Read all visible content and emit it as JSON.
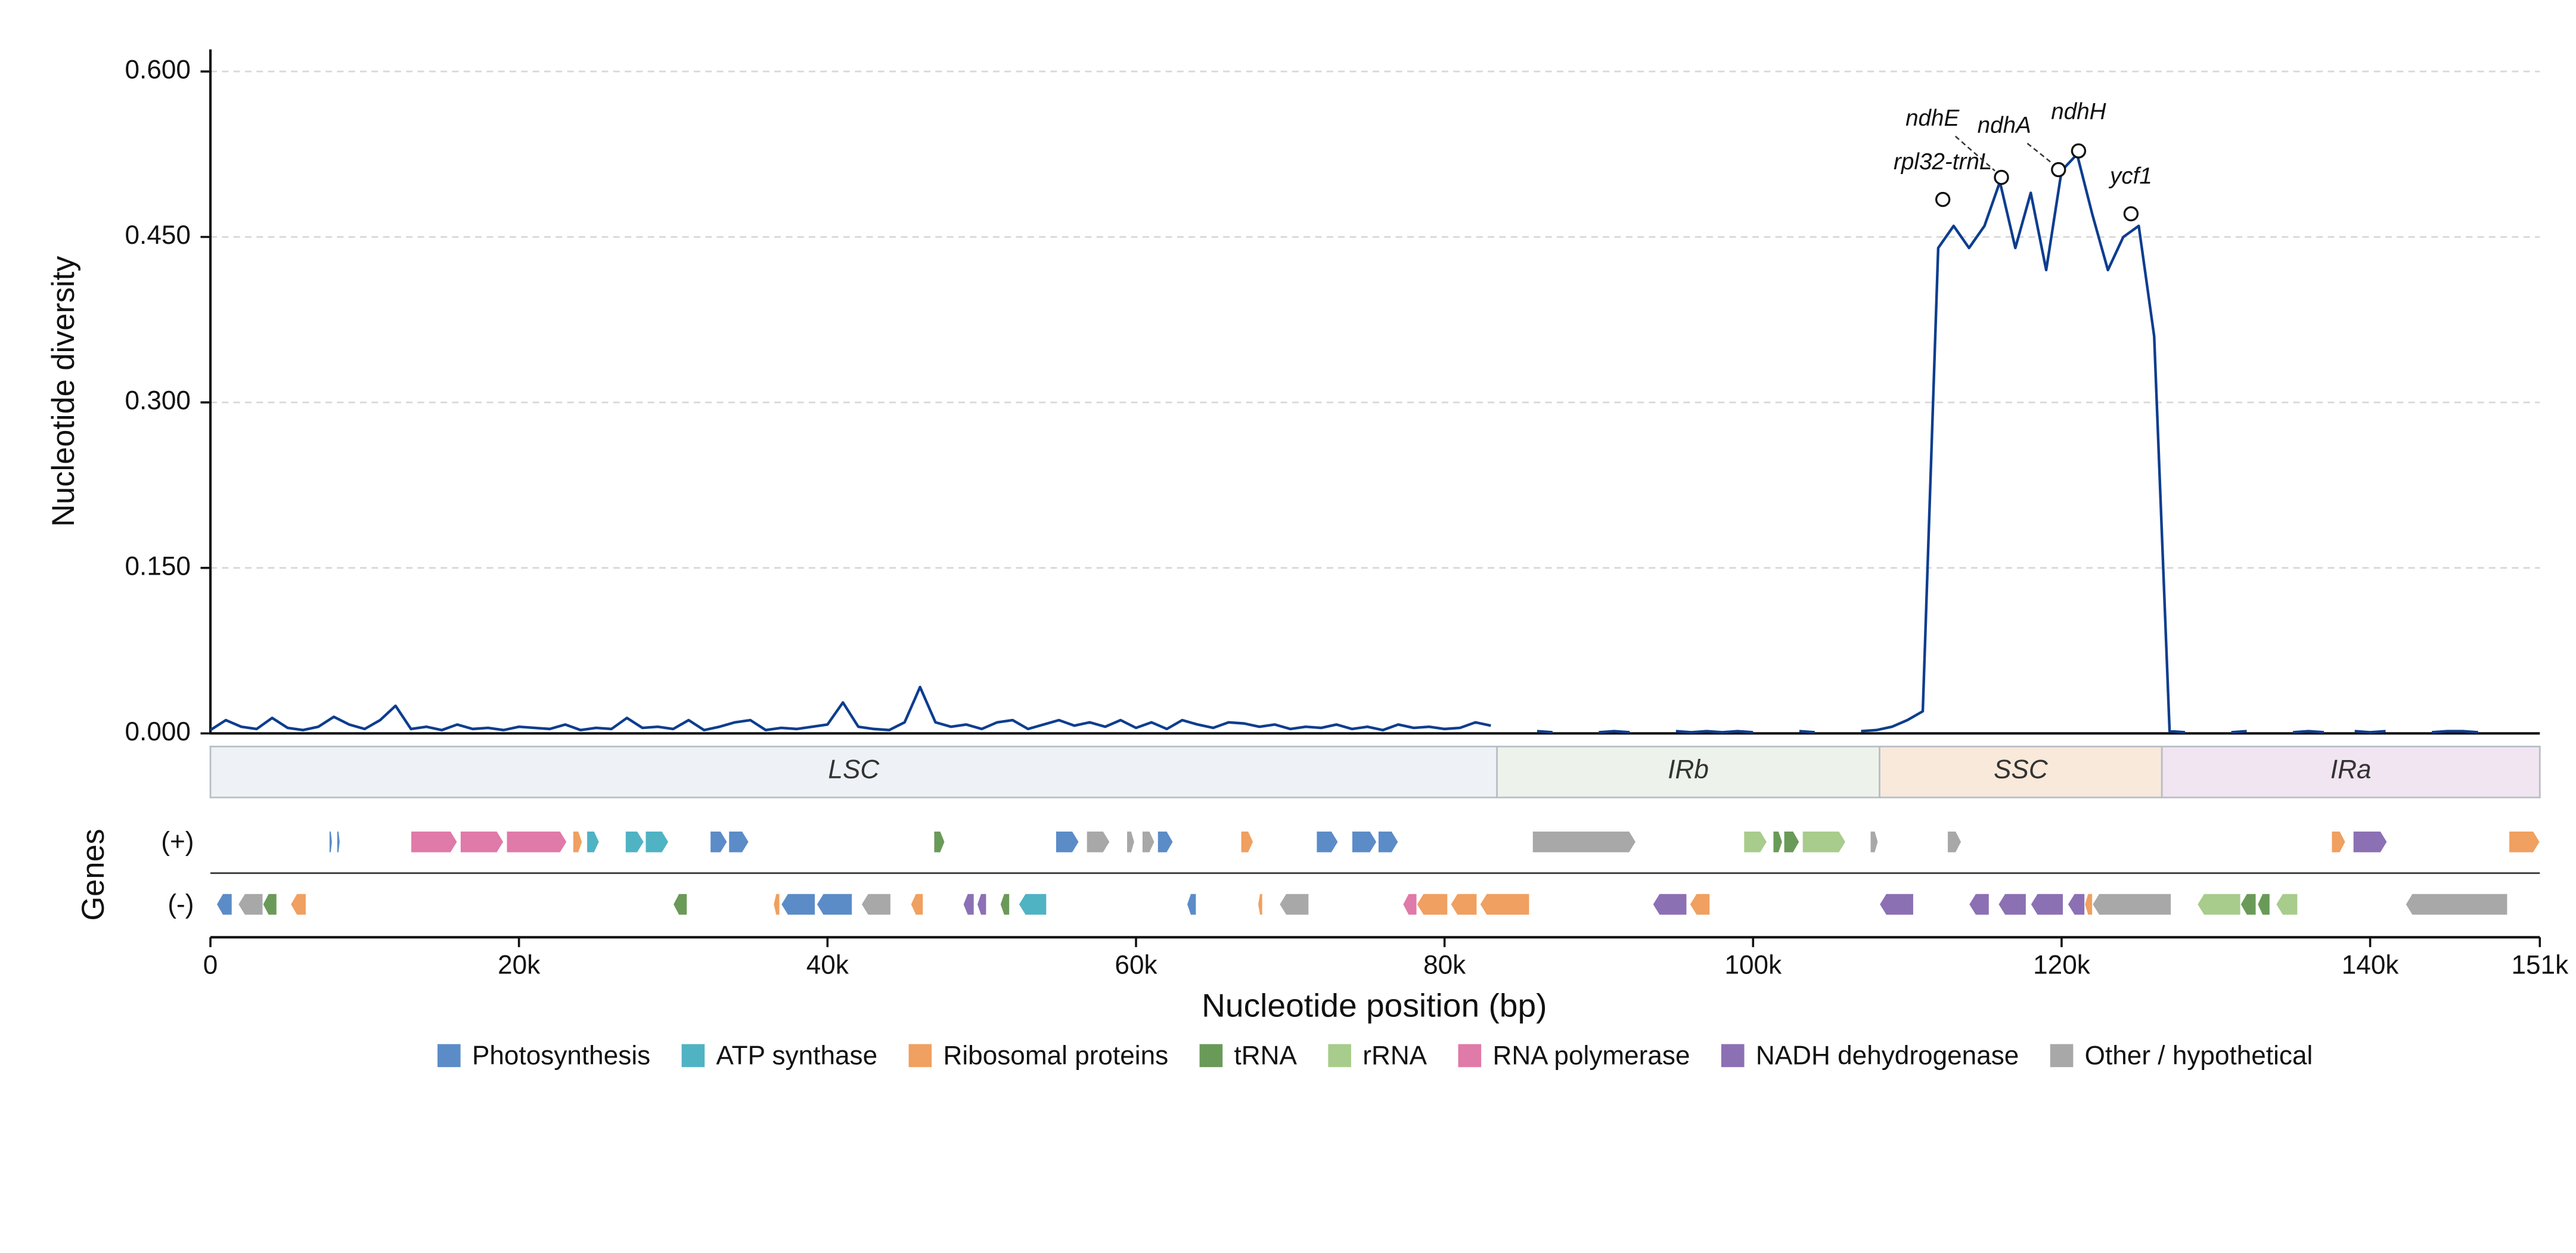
{
  "chart_data": {
    "type": "line",
    "ylabel": "Nucleotide diversity",
    "xlabel": "Nucleotide position (bp)",
    "genes_label": "Genes",
    "strand_labels": [
      "(+)",
      "(-)"
    ],
    "xlim": [
      0,
      151000
    ],
    "ylim": [
      0,
      0.62
    ],
    "xticks": [
      0,
      {
        "value": 20000,
        "label": "20k"
      },
      {
        "value": 40000,
        "label": "40k"
      },
      {
        "value": 60000,
        "label": "60k"
      },
      {
        "value": 80000,
        "label": "80k"
      },
      {
        "value": 100000,
        "label": "100k"
      },
      {
        "value": 120000,
        "label": "120k"
      },
      {
        "value": 140000,
        "label": "140k"
      },
      {
        "value": 151000,
        "label": "151k"
      }
    ],
    "yticks": [
      {
        "value": 0,
        "label": "0.000"
      },
      {
        "value": 0.15,
        "label": "0.150"
      },
      {
        "value": 0.3,
        "label": "0.300"
      },
      {
        "value": 0.45,
        "label": "0.450"
      },
      {
        "value": 0.6,
        "label": "0.600"
      }
    ],
    "grid": true,
    "series": [
      {
        "name": "Nucleotide diversity",
        "color": "#0d3d8f",
        "x": [
          0,
          1000,
          2000,
          3000,
          4000,
          5000,
          6000,
          7000,
          8000,
          9000,
          10000,
          11000,
          12000,
          13000,
          14000,
          15000,
          16000,
          17000,
          18000,
          19000,
          20000,
          21000,
          22000,
          23000,
          24000,
          25000,
          26000,
          27000,
          28000,
          29000,
          30000,
          31000,
          32000,
          33000,
          34000,
          35000,
          36000,
          37000,
          38000,
          39000,
          40000,
          41000,
          42000,
          43000,
          44000,
          45000,
          46000,
          47000,
          48000,
          49000,
          50000,
          51000,
          52000,
          53000,
          54000,
          55000,
          56000,
          57000,
          58000,
          59000,
          60000,
          61000,
          62000,
          63000,
          64000,
          65000,
          66000,
          67000,
          68000,
          69000,
          70000,
          71000,
          72000,
          73000,
          74000,
          75000,
          76000,
          77000,
          78000,
          79000,
          80000,
          81000,
          82000,
          83000,
          84000,
          85000,
          86000,
          87000,
          88000,
          89000,
          90000,
          91000,
          92000,
          93000,
          94000,
          95000,
          96000,
          97000,
          98000,
          99000,
          100000,
          101000,
          102000,
          103000,
          104000,
          105000,
          106000,
          107000,
          108000,
          109000,
          110000,
          111000,
          112000,
          113000,
          114000,
          115000,
          116000,
          117000,
          118000,
          119000,
          120000,
          121000,
          122000,
          123000,
          124000,
          125000,
          126000,
          127000,
          128000,
          129000,
          130000,
          131000,
          132000,
          133000,
          134000,
          135000,
          136000,
          137000,
          138000,
          139000,
          140000,
          141000,
          142000,
          143000,
          144000,
          145000,
          146000,
          147000,
          148000,
          149000,
          150000
        ],
        "values": [
          0.003,
          0.012,
          0.006,
          0.004,
          0.014,
          0.005,
          0.003,
          0.006,
          0.015,
          0.008,
          0.004,
          0.012,
          0.025,
          0.004,
          0.006,
          0.003,
          0.008,
          0.004,
          0.005,
          0.003,
          0.006,
          0.005,
          0.004,
          0.008,
          0.003,
          0.005,
          0.004,
          0.014,
          0.005,
          0.006,
          0.004,
          0.012,
          0.003,
          0.006,
          0.01,
          0.012,
          0.003,
          0.005,
          0.004,
          0.006,
          0.008,
          0.028,
          0.006,
          0.004,
          0.003,
          0.01,
          0.042,
          0.01,
          0.006,
          0.008,
          0.004,
          0.01,
          0.012,
          0.004,
          0.008,
          0.012,
          0.007,
          0.01,
          0.006,
          0.012,
          0.005,
          0.01,
          0.004,
          0.012,
          0.008,
          0.005,
          0.01,
          0.009,
          0.006,
          0.008,
          0.004,
          0.006,
          0.005,
          0.008,
          0.004,
          0.006,
          0.003,
          0.008,
          0.005,
          0.006,
          0.004,
          0.005,
          0.01,
          0.007,
          null,
          null,
          0.002,
          0.001,
          null,
          null,
          0.001,
          0.002,
          0.001,
          null,
          null,
          0.002,
          0.001,
          0.002,
          0.001,
          0.002,
          0.001,
          null,
          null,
          0.002,
          0.001,
          null,
          null,
          0.002,
          0.003,
          0.006,
          0.012,
          0.02,
          0.44,
          0.46,
          0.44,
          0.46,
          0.5,
          0.44,
          0.49,
          0.42,
          0.51,
          0.525,
          0.47,
          0.42,
          0.45,
          0.46,
          0.36,
          0.002,
          0.001,
          null,
          null,
          0.001,
          0.002,
          null,
          null,
          0.001,
          0.002,
          0.001,
          null,
          0.002,
          0.001,
          0.002,
          null,
          null,
          0.001,
          0.002,
          0.002,
          0.001,
          null,
          null,
          null
        ]
      }
    ],
    "annotations": [
      {
        "label": "rpl32-trnL",
        "x": 112300,
        "y": 0.484
      },
      {
        "label": "ndhE",
        "x": 116100,
        "y": 0.504
      },
      {
        "label": "ndhA",
        "x": 119800,
        "y": 0.511
      },
      {
        "label": "ndhH",
        "x": 121100,
        "y": 0.528
      },
      {
        "label": "ycf1",
        "x": 124500,
        "y": 0.471
      }
    ],
    "regions": [
      {
        "name": "LSC",
        "start": 0,
        "end": 83400,
        "color": "#eef2f6"
      },
      {
        "name": "IRb",
        "start": 83400,
        "end": 108200,
        "color": "#edf3ea"
      },
      {
        "name": "SSC",
        "start": 108200,
        "end": 126500,
        "color": "#f9e9db"
      },
      {
        "name": "IRa",
        "start": 126500,
        "end": 151000,
        "color": "#f1e5f1"
      }
    ],
    "categories": [
      {
        "name": "Photosynthesis",
        "color": "#5b8cc8"
      },
      {
        "name": "ATP synthase",
        "color": "#4fb3c4"
      },
      {
        "name": "Ribosomal proteins",
        "color": "#f0a060"
      },
      {
        "name": "tRNA",
        "color": "#6a9a58"
      },
      {
        "name": "rRNA",
        "color": "#a8cc8c"
      },
      {
        "name": "RNA polymerase",
        "color": "#e07aa8"
      },
      {
        "name": "NADH dehydrogenase",
        "color": "#8c70b4"
      },
      {
        "name": "Other / hypothetical",
        "color": "#a8a8a8"
      }
    ],
    "genes_plus": [
      [
        7700,
        7900,
        0
      ],
      [
        8200,
        8400,
        0
      ],
      [
        13000,
        16000,
        5
      ],
      [
        16200,
        19000,
        5
      ],
      [
        19200,
        23100,
        5
      ],
      [
        23500,
        24100,
        2
      ],
      [
        24400,
        25200,
        1
      ],
      [
        26900,
        28100,
        1
      ],
      [
        28200,
        29700,
        1
      ],
      [
        32400,
        33500,
        0
      ],
      [
        33600,
        34900,
        0
      ],
      [
        46900,
        47600,
        3
      ],
      [
        54800,
        56300,
        0
      ],
      [
        56800,
        58300,
        7
      ],
      [
        59400,
        59900,
        7
      ],
      [
        60400,
        61200,
        7
      ],
      [
        61400,
        62400,
        0
      ],
      [
        66800,
        67600,
        2
      ],
      [
        71700,
        73100,
        0
      ],
      [
        74000,
        75600,
        0
      ],
      [
        75700,
        77000,
        0
      ],
      [
        85700,
        92400,
        7
      ],
      [
        99400,
        100900,
        4
      ],
      [
        101300,
        101900,
        3
      ],
      [
        102000,
        103000,
        3
      ],
      [
        103200,
        106000,
        4
      ],
      [
        107600,
        108100,
        7
      ],
      [
        112600,
        113500,
        7
      ],
      [
        137500,
        138400,
        2
      ],
      [
        138900,
        141100,
        6
      ],
      [
        149000,
        151000,
        2
      ]
    ],
    "genes_minus": [
      [
        400,
        1400,
        0
      ],
      [
        1800,
        3400,
        7
      ],
      [
        3400,
        4300,
        3
      ],
      [
        5200,
        6200,
        2
      ],
      [
        30000,
        30900,
        3
      ],
      [
        36500,
        36900,
        2
      ],
      [
        37000,
        39200,
        0
      ],
      [
        39300,
        41600,
        0
      ],
      [
        42200,
        44100,
        7
      ],
      [
        45400,
        46200,
        2
      ],
      [
        48800,
        49500,
        6
      ],
      [
        49700,
        50300,
        6
      ],
      [
        51200,
        51800,
        3
      ],
      [
        52400,
        54200,
        1
      ],
      [
        63300,
        63900,
        0
      ],
      [
        67900,
        68200,
        2
      ],
      [
        69300,
        71200,
        7
      ],
      [
        77300,
        78200,
        5
      ],
      [
        78200,
        80200,
        2
      ],
      [
        80400,
        82100,
        2
      ],
      [
        82300,
        85500,
        2
      ],
      [
        93500,
        95700,
        6
      ],
      [
        95900,
        97200,
        2
      ],
      [
        108200,
        110400,
        6
      ],
      [
        114000,
        115300,
        6
      ],
      [
        115900,
        117700,
        6
      ],
      [
        118000,
        120100,
        6
      ],
      [
        120400,
        121500,
        6
      ],
      [
        121500,
        122000,
        2
      ],
      [
        122000,
        127100,
        7
      ],
      [
        128800,
        131600,
        4
      ],
      [
        131600,
        132600,
        3
      ],
      [
        132700,
        133500,
        3
      ],
      [
        133900,
        135300,
        4
      ],
      [
        142300,
        148900,
        7
      ]
    ]
  }
}
